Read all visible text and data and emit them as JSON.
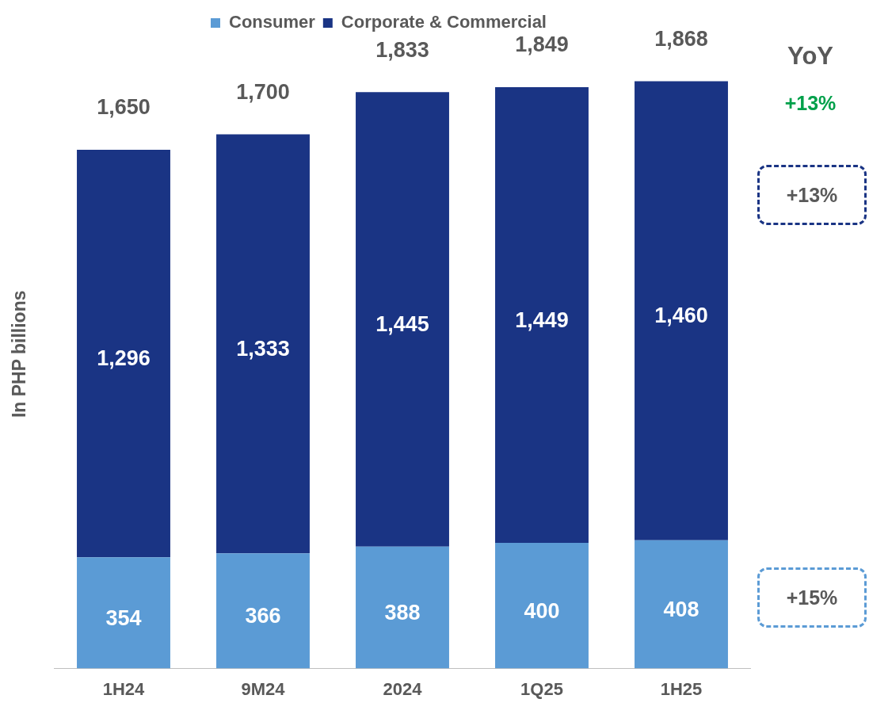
{
  "chart_data": {
    "type": "bar",
    "stacked": true,
    "ylabel": "In PHP billions",
    "categories": [
      "1H24",
      "9M24",
      "2024",
      "1Q25",
      "1H25"
    ],
    "series": [
      {
        "name": "Consumer",
        "color": "#5b9bd5",
        "values": [
          354,
          366,
          388,
          400,
          408
        ],
        "value_labels": [
          "354",
          "366",
          "388",
          "400",
          "408"
        ]
      },
      {
        "name": "Corporate & Commercial",
        "color": "#1a3484",
        "values": [
          1296,
          1333,
          1445,
          1449,
          1460
        ],
        "value_labels": [
          "1,296",
          "1,333",
          "1,445",
          "1,449",
          "1,460"
        ]
      }
    ],
    "totals": [
      "1,650",
      "1,700",
      "1,833",
      "1,849",
      "1,868"
    ],
    "legend": "top",
    "grid": false,
    "annotations": [
      "YoY",
      "+13%",
      "+13%",
      "+15%"
    ]
  }
}
